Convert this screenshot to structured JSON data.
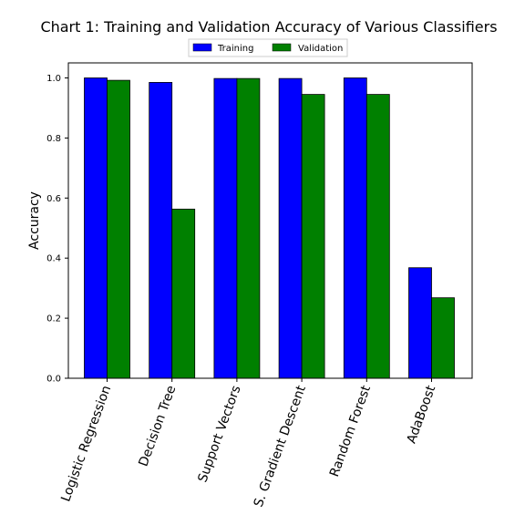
{
  "chart_data": {
    "type": "bar",
    "title": "Chart 1: Training and Validation Accuracy of Various Classifiers",
    "xlabel": "",
    "ylabel": "Accuracy",
    "ylim": [
      0,
      1.05
    ],
    "yticks": [
      "0.0",
      "0.2",
      "0.4",
      "0.6",
      "0.8",
      "1.0"
    ],
    "categories": [
      "Logistic Regression",
      "Decision Tree",
      "Support Vectors",
      "S. Gradient Descent",
      "Random Forest",
      "AdaBoost"
    ],
    "series": [
      {
        "name": "Training",
        "color": "#0000ff",
        "values": [
          1.0,
          0.985,
          0.998,
          0.998,
          1.0,
          0.368
        ]
      },
      {
        "name": "Validation",
        "color": "#008000",
        "values": [
          0.992,
          0.563,
          0.998,
          0.945,
          0.945,
          0.268
        ]
      }
    ],
    "legend_position": "top-center",
    "grid": false
  }
}
